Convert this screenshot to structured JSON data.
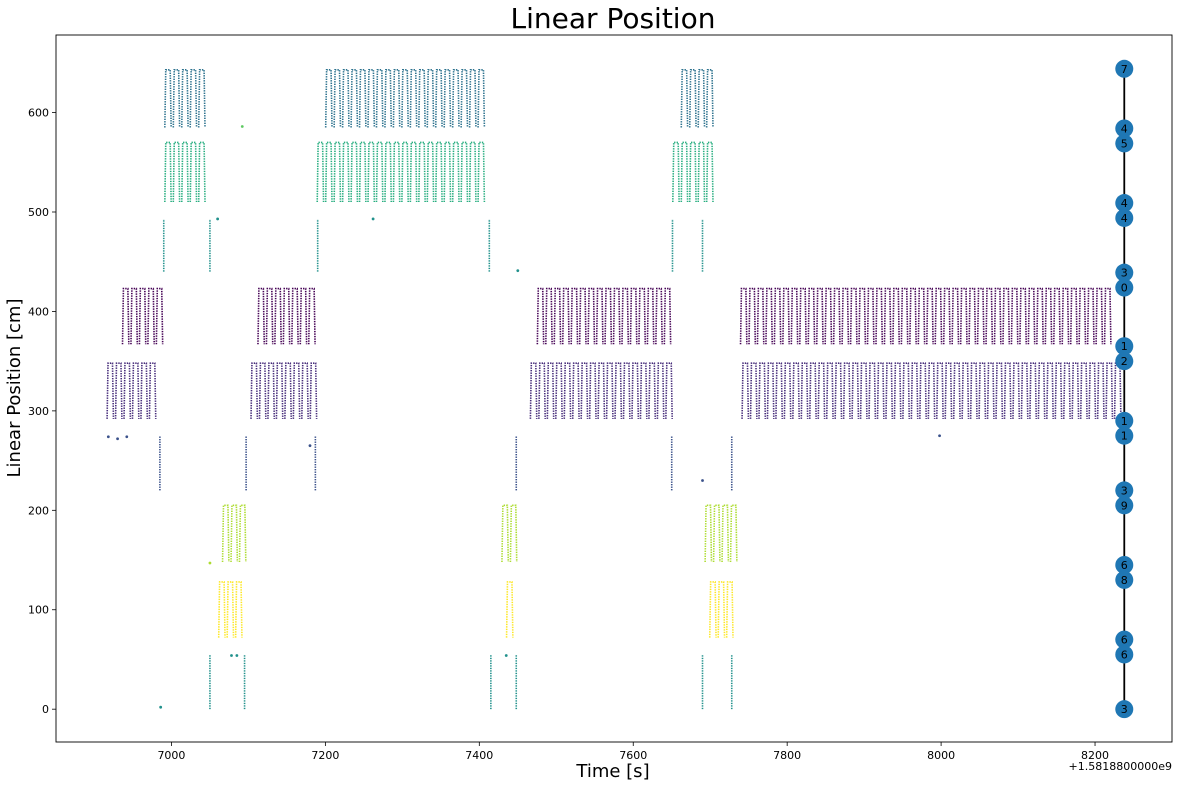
{
  "chart_data": {
    "type": "scatter",
    "title": "Linear Position",
    "xlabel": "Time [s]",
    "ylabel": "Linear Position [cm]",
    "offset_text": "+1.5818800000e9",
    "xlim": [
      6850,
      8300
    ],
    "ylim": [
      -33,
      678
    ],
    "xticks": [
      7000,
      7200,
      7400,
      7600,
      7800,
      8000,
      8200
    ],
    "yticks": [
      0,
      100,
      200,
      300,
      400,
      500,
      600
    ],
    "grid": false,
    "palette": {
      "0": "#440154",
      "1": "#472d7b",
      "2": "#3b528b",
      "3": "#2c728e",
      "4": "#21918c",
      "5": "#28ae80",
      "6": "#5ec962",
      "7": "#addc30",
      "8": "#fde725"
    },
    "bands": [
      {
        "segment": 0,
        "y": [
          367,
          423
        ],
        "start": 6935,
        "end": 8222,
        "gaps": [
          [
            6990,
            7105
          ],
          [
            7190,
            7470
          ],
          [
            7660,
            7738
          ]
        ]
      },
      {
        "segment": 1,
        "y": [
          292,
          348
        ],
        "start": 6915,
        "end": 8225,
        "gaps": [
          [
            6985,
            7098
          ],
          [
            7190,
            7460
          ],
          [
            7660,
            7730
          ]
        ]
      },
      {
        "segment": 3,
        "y": [
          585,
          643
        ],
        "start": 6990,
        "end": 7700,
        "gaps": [
          [
            7048,
            7190
          ],
          [
            7410,
            7655
          ]
        ]
      },
      {
        "segment": 5,
        "y": [
          510,
          570
        ],
        "start": 6990,
        "end": 7700,
        "gaps": [
          [
            7050,
            7185
          ],
          [
            7415,
            7650
          ]
        ]
      },
      {
        "segment": 7,
        "y": [
          148,
          205
        ],
        "start": 7065,
        "end": 7732,
        "gaps": [
          [
            7100,
            7420
          ],
          [
            7450,
            7690
          ]
        ]
      },
      {
        "segment": 8,
        "y": [
          72,
          128
        ],
        "start": 7060,
        "end": 7730,
        "gaps": [
          [
            7095,
            7425
          ],
          [
            7445,
            7695
          ]
        ]
      }
    ],
    "vertical_segments": [
      {
        "segment": 4,
        "x": 6990,
        "y": [
          440,
          493
        ]
      },
      {
        "segment": 4,
        "x": 7050,
        "y": [
          440,
          493
        ]
      },
      {
        "segment": 4,
        "x": 7190,
        "y": [
          440,
          493
        ]
      },
      {
        "segment": 4,
        "x": 7413,
        "y": [
          440,
          493
        ]
      },
      {
        "segment": 4,
        "x": 7651,
        "y": [
          440,
          493
        ]
      },
      {
        "segment": 4,
        "x": 7690,
        "y": [
          440,
          493
        ]
      },
      {
        "segment": 2,
        "x": 6985,
        "y": [
          220,
          275
        ]
      },
      {
        "segment": 2,
        "x": 7097,
        "y": [
          220,
          275
        ]
      },
      {
        "segment": 2,
        "x": 7187,
        "y": [
          220,
          275
        ]
      },
      {
        "segment": 2,
        "x": 7448,
        "y": [
          220,
          275
        ]
      },
      {
        "segment": 2,
        "x": 7650,
        "y": [
          220,
          275
        ]
      },
      {
        "segment": 2,
        "x": 7728,
        "y": [
          220,
          275
        ]
      },
      {
        "segment": 4,
        "x": 7050,
        "y": [
          0,
          55
        ]
      },
      {
        "segment": 4,
        "x": 7095,
        "y": [
          0,
          55
        ]
      },
      {
        "segment": 4,
        "x": 7415,
        "y": [
          0,
          55
        ]
      },
      {
        "segment": 4,
        "x": 7448,
        "y": [
          0,
          55
        ]
      },
      {
        "segment": 4,
        "x": 7690,
        "y": [
          0,
          55
        ]
      },
      {
        "segment": 4,
        "x": 7728,
        "y": [
          0,
          55
        ]
      }
    ],
    "scatter_points": [
      {
        "segment": 2,
        "x": 6918,
        "y": 274
      },
      {
        "segment": 2,
        "x": 6930,
        "y": 272
      },
      {
        "segment": 2,
        "x": 6942,
        "y": 274
      },
      {
        "segment": 2,
        "x": 7998,
        "y": 275
      },
      {
        "segment": 2,
        "x": 7690,
        "y": 230
      },
      {
        "segment": 2,
        "x": 7180,
        "y": 265
      },
      {
        "segment": 4,
        "x": 7060,
        "y": 493
      },
      {
        "segment": 4,
        "x": 7262,
        "y": 493
      },
      {
        "segment": 4,
        "x": 7450,
        "y": 441
      },
      {
        "segment": 4,
        "x": 7078,
        "y": 54
      },
      {
        "segment": 4,
        "x": 7085,
        "y": 54
      },
      {
        "segment": 4,
        "x": 7435,
        "y": 54
      },
      {
        "segment": 4,
        "x": 6986,
        "y": 2
      },
      {
        "segment": 7,
        "x": 7050,
        "y": 147
      },
      {
        "segment": 6,
        "x": 7092,
        "y": 586
      }
    ],
    "nodes": [
      {
        "label": "7",
        "y": 644
      },
      {
        "label": "4",
        "y": 584
      },
      {
        "label": "5",
        "y": 569
      },
      {
        "label": "4",
        "y": 509
      },
      {
        "label": "4",
        "y": 494
      },
      {
        "label": "3",
        "y": 439
      },
      {
        "label": "0",
        "y": 424
      },
      {
        "label": "1",
        "y": 365
      },
      {
        "label": "2",
        "y": 350
      },
      {
        "label": "1",
        "y": 290
      },
      {
        "label": "1",
        "y": 275
      },
      {
        "label": "3",
        "y": 220
      },
      {
        "label": "9",
        "y": 205
      },
      {
        "label": "6",
        "y": 145
      },
      {
        "label": "8",
        "y": 130
      },
      {
        "label": "6",
        "y": 70
      },
      {
        "label": "6",
        "y": 55
      },
      {
        "label": "3",
        "y": 0
      }
    ],
    "node_x": 8238,
    "node_color": "#1f77b4"
  }
}
